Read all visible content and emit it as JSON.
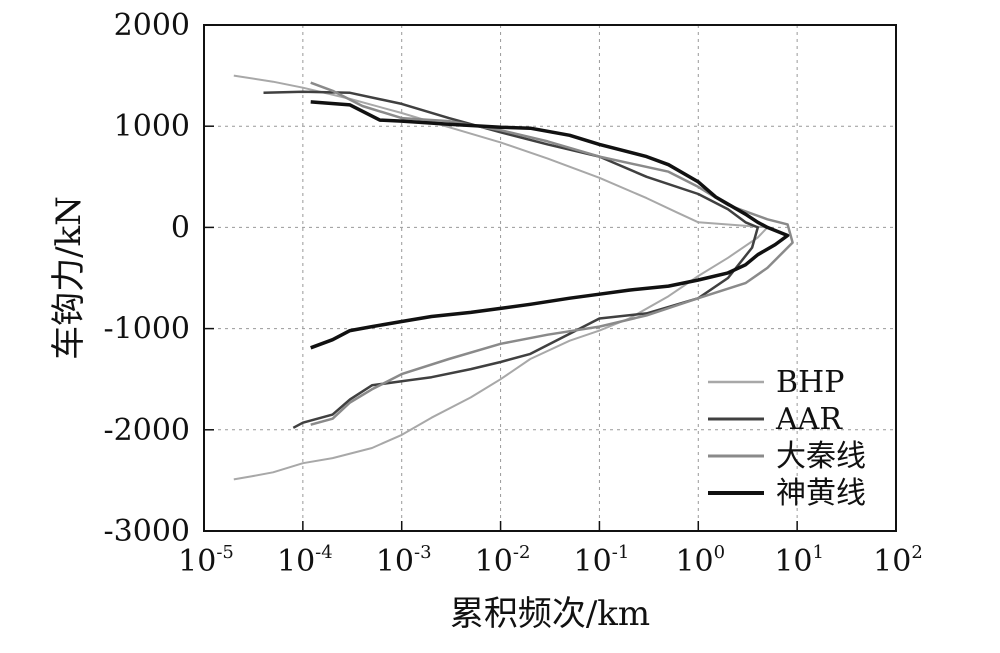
{
  "chart_data": {
    "type": "line",
    "xlabel": "累积频次/km",
    "ylabel": "车钩力/kN",
    "xscale": "log",
    "xlim": [
      1e-05,
      100
    ],
    "ylim": [
      -3000,
      2000
    ],
    "grid": true,
    "legend_position": "bottom-right",
    "x_ticks": [
      {
        "base": "10",
        "exp": "-5"
      },
      {
        "base": "10",
        "exp": "-4"
      },
      {
        "base": "10",
        "exp": "-3"
      },
      {
        "base": "10",
        "exp": "-2"
      },
      {
        "base": "10",
        "exp": "-1"
      },
      {
        "base": "10",
        "exp": "0"
      },
      {
        "base": "10",
        "exp": "1"
      },
      {
        "base": "10",
        "exp": "2"
      }
    ],
    "y_ticks": [
      "2000",
      "1000",
      "0",
      "-1000",
      "-2000",
      "-3000"
    ],
    "series": [
      {
        "name": "BHP",
        "color": "#a8a8a8",
        "width": 2,
        "points": [
          [
            2e-05,
            1500
          ],
          [
            5e-05,
            1440
          ],
          [
            0.0001,
            1380
          ],
          [
            0.0003,
            1270
          ],
          [
            0.001,
            1130
          ],
          [
            0.003,
            990
          ],
          [
            0.01,
            840
          ],
          [
            0.03,
            680
          ],
          [
            0.1,
            490
          ],
          [
            0.3,
            290
          ],
          [
            0.6,
            150
          ],
          [
            1.0,
            50
          ],
          [
            5,
            0
          ],
          [
            4,
            -100
          ],
          [
            2,
            -300
          ],
          [
            1,
            -480
          ],
          [
            0.5,
            -680
          ],
          [
            0.2,
            -900
          ],
          [
            0.1,
            -1020
          ],
          [
            0.05,
            -1120
          ],
          [
            0.02,
            -1300
          ],
          [
            0.01,
            -1500
          ],
          [
            0.005,
            -1680
          ],
          [
            0.002,
            -1880
          ],
          [
            0.001,
            -2050
          ],
          [
            0.0005,
            -2180
          ],
          [
            0.0002,
            -2280
          ],
          [
            0.0001,
            -2330
          ],
          [
            5e-05,
            -2420
          ],
          [
            3e-05,
            -2460
          ],
          [
            2e-05,
            -2490
          ]
        ]
      },
      {
        "name": "AAR",
        "color": "#404040",
        "width": 2.5,
        "points": [
          [
            4e-05,
            1330
          ],
          [
            0.0001,
            1340
          ],
          [
            0.0003,
            1330
          ],
          [
            0.001,
            1220
          ],
          [
            0.003,
            1080
          ],
          [
            0.01,
            940
          ],
          [
            0.03,
            820
          ],
          [
            0.1,
            700
          ],
          [
            0.3,
            500
          ],
          [
            1,
            330
          ],
          [
            2,
            180
          ],
          [
            3,
            50
          ],
          [
            4,
            0
          ],
          [
            3.5,
            -200
          ],
          [
            2,
            -500
          ],
          [
            1,
            -700
          ],
          [
            0.3,
            -850
          ],
          [
            0.1,
            -900
          ],
          [
            0.05,
            -1050
          ],
          [
            0.02,
            -1250
          ],
          [
            0.01,
            -1330
          ],
          [
            0.005,
            -1400
          ],
          [
            0.002,
            -1480
          ],
          [
            0.001,
            -1520
          ],
          [
            0.0005,
            -1560
          ],
          [
            0.0003,
            -1700
          ],
          [
            0.0002,
            -1850
          ],
          [
            0.0001,
            -1930
          ],
          [
            8e-05,
            -1980
          ]
        ]
      },
      {
        "name": "大秦线",
        "color": "#8a8a8a",
        "width": 2.5,
        "points": [
          [
            0.00012,
            1430
          ],
          [
            0.0002,
            1350
          ],
          [
            0.0004,
            1200
          ],
          [
            0.001,
            1080
          ],
          [
            0.003,
            1050
          ],
          [
            0.01,
            960
          ],
          [
            0.03,
            850
          ],
          [
            0.1,
            700
          ],
          [
            0.5,
            550
          ],
          [
            1,
            400
          ],
          [
            2,
            220
          ],
          [
            5,
            80
          ],
          [
            8,
            30
          ],
          [
            9,
            -150
          ],
          [
            5,
            -400
          ],
          [
            3,
            -550
          ],
          [
            1,
            -700
          ],
          [
            0.3,
            -870
          ],
          [
            0.1,
            -980
          ],
          [
            0.03,
            -1060
          ],
          [
            0.01,
            -1150
          ],
          [
            0.003,
            -1300
          ],
          [
            0.001,
            -1450
          ],
          [
            0.0005,
            -1600
          ],
          [
            0.0003,
            -1730
          ],
          [
            0.0002,
            -1890
          ],
          [
            0.00012,
            -1950
          ]
        ]
      },
      {
        "name": "神黄线",
        "color": "#111111",
        "width": 3.5,
        "points": [
          [
            0.00012,
            1240
          ],
          [
            0.0003,
            1210
          ],
          [
            0.0006,
            1060
          ],
          [
            0.001,
            1050
          ],
          [
            0.003,
            1020
          ],
          [
            0.01,
            990
          ],
          [
            0.02,
            980
          ],
          [
            0.05,
            910
          ],
          [
            0.1,
            820
          ],
          [
            0.3,
            700
          ],
          [
            0.5,
            620
          ],
          [
            1,
            450
          ],
          [
            1.5,
            300
          ],
          [
            3,
            130
          ],
          [
            4,
            50
          ],
          [
            5,
            0
          ],
          [
            8,
            -80
          ],
          [
            6,
            -170
          ],
          [
            4,
            -270
          ],
          [
            3,
            -370
          ],
          [
            2,
            -450
          ],
          [
            1,
            -520
          ],
          [
            0.5,
            -580
          ],
          [
            0.2,
            -620
          ],
          [
            0.1,
            -660
          ],
          [
            0.05,
            -700
          ],
          [
            0.02,
            -760
          ],
          [
            0.01,
            -800
          ],
          [
            0.005,
            -840
          ],
          [
            0.002,
            -880
          ],
          [
            0.001,
            -930
          ],
          [
            0.0005,
            -980
          ],
          [
            0.0003,
            -1020
          ],
          [
            0.0002,
            -1110
          ],
          [
            0.00012,
            -1190
          ]
        ]
      }
    ]
  }
}
